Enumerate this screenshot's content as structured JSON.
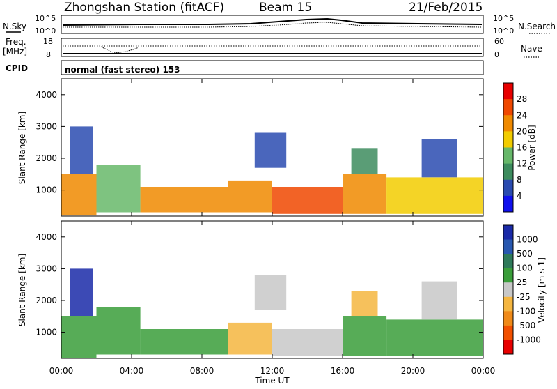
{
  "header": {
    "station": "Zhongshan Station (fitACF)",
    "beam": "Beam 15",
    "date": "21/Feb/2015"
  },
  "top_panels": {
    "nsky_label": "N.Sky",
    "nsky_ticks": [
      "10^5",
      "10^0"
    ],
    "nsearch_label": "N.Search",
    "nsearch_ticks": [
      "10^5",
      "10^0"
    ],
    "freq_label": "Freq.",
    "freq_unit": "[MHz]",
    "freq_ticks": [
      "18",
      "8"
    ],
    "nave_label": "Nave",
    "nave_ticks": [
      "60",
      "0"
    ],
    "cpid_label": "CPID",
    "cpid_text": "normal (fast stereo) 153"
  },
  "colors": {
    "power_scale": [
      "#1010ee",
      "#2a4bb0",
      "#3d8c5e",
      "#67b86a",
      "#f2cc00",
      "#f08a00",
      "#f04800",
      "#e80000"
    ],
    "velocity_scale": [
      "#e80000",
      "#f25000",
      "#f08a18",
      "#f5b640",
      "#c8c8c8",
      "#3a9e3a",
      "#2e7a5a",
      "#2858b0",
      "#1a2aa8"
    ]
  },
  "chart_data": [
    {
      "type": "heatmap",
      "title": "Power",
      "ylabel": "Slant Range [km]",
      "xlabel": "Time UT",
      "x_ticks": [
        "00:00",
        "04:00",
        "08:00",
        "12:00",
        "16:00",
        "20:00",
        "00:00"
      ],
      "y_ticks": [
        "1000",
        "2000",
        "3000",
        "4000"
      ],
      "ylim": [
        180,
        4500
      ],
      "x_range_hours": [
        0,
        24
      ],
      "colorbar": {
        "label": "Power [dB]",
        "ticks": [
          "4",
          "8",
          "12",
          "16",
          "20",
          "24",
          "28"
        ],
        "range": [
          0,
          32
        ]
      },
      "scatter_regions": [
        {
          "t0": 0.0,
          "t1": 2.0,
          "r0": 200,
          "r1": 1500,
          "v": 22
        },
        {
          "t0": 0.5,
          "t1": 1.8,
          "r0": 1500,
          "r1": 3000,
          "v": 6
        },
        {
          "t0": 2.0,
          "t1": 4.5,
          "r0": 300,
          "r1": 1800,
          "v": 14
        },
        {
          "t0": 4.5,
          "t1": 9.5,
          "r0": 300,
          "r1": 1100,
          "v": 20
        },
        {
          "t0": 9.5,
          "t1": 12.0,
          "r0": 300,
          "r1": 1300,
          "v": 22
        },
        {
          "t0": 11.0,
          "t1": 12.8,
          "r0": 1700,
          "r1": 2800,
          "v": 7
        },
        {
          "t0": 12.0,
          "t1": 16.0,
          "r0": 250,
          "r1": 1100,
          "v": 24
        },
        {
          "t0": 16.0,
          "t1": 18.5,
          "r0": 250,
          "r1": 1500,
          "v": 20
        },
        {
          "t0": 16.5,
          "t1": 18.0,
          "r0": 1500,
          "r1": 2300,
          "v": 8
        },
        {
          "t0": 18.5,
          "t1": 24.0,
          "r0": 250,
          "r1": 1400,
          "v": 18
        },
        {
          "t0": 20.5,
          "t1": 22.5,
          "r0": 1400,
          "r1": 2600,
          "v": 6
        }
      ]
    },
    {
      "type": "heatmap",
      "title": "Velocity",
      "ylabel": "Slant Range [km]",
      "xlabel": "Time UT",
      "x_ticks": [
        "00:00",
        "04:00",
        "08:00",
        "12:00",
        "16:00",
        "20:00",
        "00:00"
      ],
      "y_ticks": [
        "1000",
        "2000",
        "3000",
        "4000"
      ],
      "ylim": [
        180,
        4500
      ],
      "x_range_hours": [
        0,
        24
      ],
      "colorbar": {
        "label": "Velocity [m s-1]",
        "ticks": [
          "1000",
          "500",
          "100",
          "25",
          "-25",
          "-100",
          "-500",
          "-1000"
        ],
        "range": [
          -1000,
          1000
        ]
      },
      "scatter_regions": [
        {
          "t0": 0.0,
          "t1": 2.0,
          "r0": 200,
          "r1": 1500,
          "v": 300
        },
        {
          "t0": 0.5,
          "t1": 1.8,
          "r0": 1500,
          "r1": 3000,
          "v": 800
        },
        {
          "t0": 2.0,
          "t1": 4.5,
          "r0": 300,
          "r1": 1800,
          "v": 200
        },
        {
          "t0": 4.5,
          "t1": 9.5,
          "r0": 300,
          "r1": 1100,
          "v": 150
        },
        {
          "t0": 9.5,
          "t1": 12.0,
          "r0": 300,
          "r1": 1300,
          "v": -300
        },
        {
          "t0": 11.0,
          "t1": 12.8,
          "r0": 1700,
          "r1": 2800,
          "v": 0
        },
        {
          "t0": 12.0,
          "t1": 16.0,
          "r0": 250,
          "r1": 1100,
          "v": 80
        },
        {
          "t0": 16.0,
          "t1": 18.5,
          "r0": 250,
          "r1": 1500,
          "v": 150
        },
        {
          "t0": 16.5,
          "t1": 18.0,
          "r0": 1500,
          "r1": 2300,
          "v": -200
        },
        {
          "t0": 18.5,
          "t1": 24.0,
          "r0": 250,
          "r1": 1400,
          "v": 200
        },
        {
          "t0": 20.5,
          "t1": 22.5,
          "r0": 1400,
          "r1": 2600,
          "v": 60
        }
      ]
    }
  ]
}
